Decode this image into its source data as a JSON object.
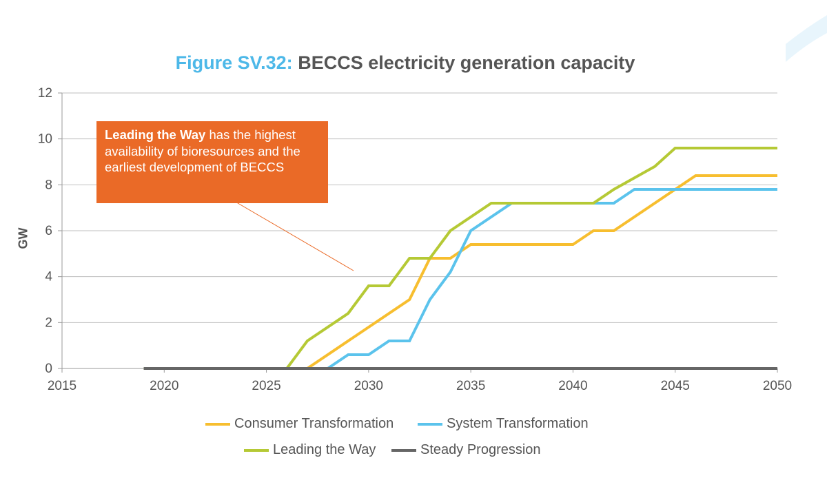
{
  "title": {
    "lead": "Figure SV.32:",
    "text": "BECCS electricity generation capacity"
  },
  "annotation": {
    "bold": "Leading the Way",
    "text": "has the highest availability of bioresources and the earliest development of BECCS",
    "color": "#ea6a27"
  },
  "chart_data": {
    "type": "line",
    "title": "Figure SV.32: BECCS electricity generation capacity",
    "xlabel": "",
    "ylabel": "GW",
    "xlim": [
      2015,
      2050
    ],
    "ylim": [
      0,
      12
    ],
    "x_ticks": [
      "2015",
      "2020",
      "2025",
      "2030",
      "2035",
      "2040",
      "2045",
      "2050"
    ],
    "y_ticks": [
      "0",
      "2",
      "4",
      "6",
      "8",
      "10",
      "12"
    ],
    "grid": "horizontal",
    "legend_position": "bottom",
    "series": [
      {
        "name": "Consumer Transformation",
        "color": "#f7be2f",
        "x": [
          2019,
          2027,
          2030,
          2032,
          2033,
          2034,
          2035,
          2040,
          2041,
          2042,
          2045,
          2046,
          2050
        ],
        "y": [
          0,
          0,
          1.8,
          3.0,
          4.8,
          4.8,
          5.4,
          5.4,
          6.0,
          6.0,
          7.8,
          8.4,
          8.4
        ]
      },
      {
        "name": "System Transformation",
        "color": "#5bc3ec",
        "x": [
          2019,
          2028,
          2029,
          2030,
          2031,
          2032,
          2033,
          2034,
          2035,
          2037,
          2042,
          2043,
          2050
        ],
        "y": [
          0,
          0,
          0.6,
          0.6,
          1.2,
          1.2,
          3.0,
          4.2,
          6.0,
          7.2,
          7.2,
          7.8,
          7.8
        ]
      },
      {
        "name": "Leading the Way",
        "color": "#b5c935",
        "x": [
          2019,
          2026,
          2027,
          2029,
          2030,
          2031,
          2032,
          2033,
          2034,
          2036,
          2041,
          2042,
          2044,
          2045,
          2050
        ],
        "y": [
          0,
          0,
          1.2,
          2.4,
          3.6,
          3.6,
          4.8,
          4.8,
          6.0,
          7.2,
          7.2,
          7.8,
          8.8,
          9.6,
          9.6
        ]
      },
      {
        "name": "Steady Progression",
        "color": "#666666",
        "x": [
          2019,
          2050
        ],
        "y": [
          0,
          0
        ]
      }
    ]
  },
  "colors": {
    "title_accent": "#4db8e8",
    "text": "#555555",
    "grid": "#bfbfbf",
    "decoration": "#e8f5fc"
  }
}
